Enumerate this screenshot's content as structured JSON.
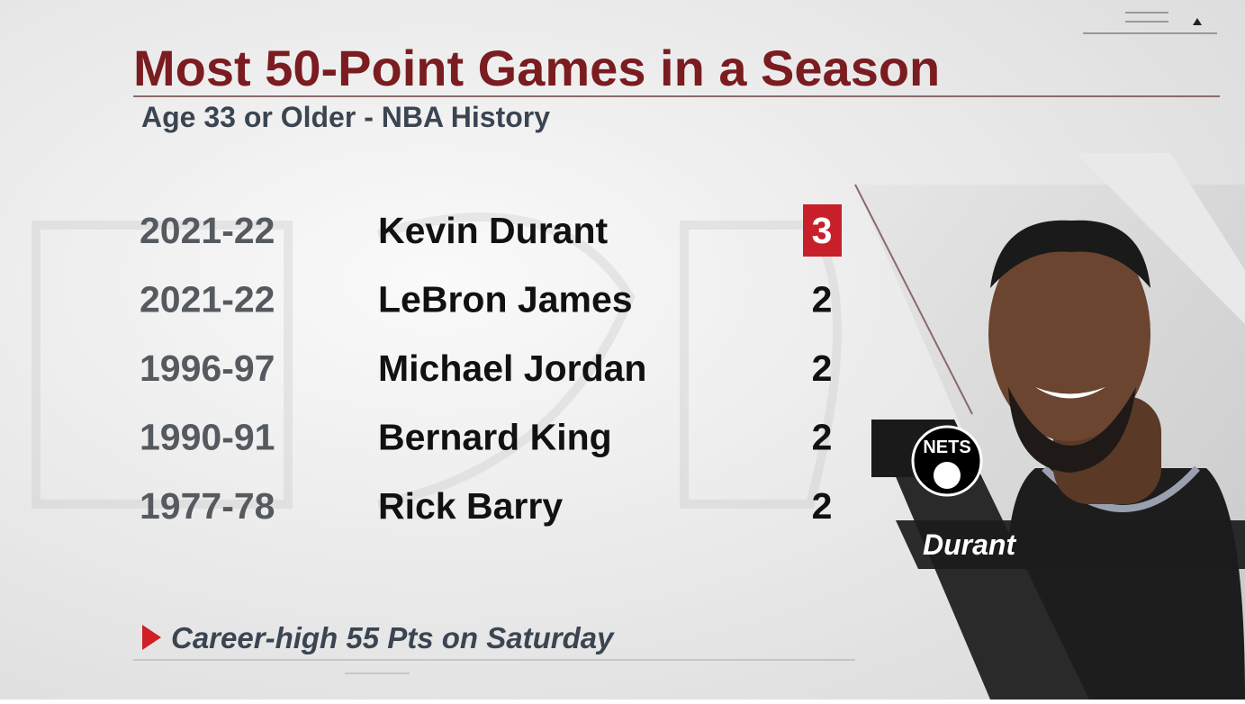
{
  "header": {
    "title": "Most 50-Point Games in a Season",
    "subtitle": "Age 33 or Older - NBA History"
  },
  "table": {
    "rows": [
      [
        "2021-22",
        "Kevin Durant",
        3
      ],
      [
        "2021-22",
        "LeBron James",
        2
      ],
      [
        "1996-97",
        "Michael Jordan",
        2
      ],
      [
        "1990-91",
        "Bernard King",
        2
      ],
      [
        "1977-78",
        "Rick Barry",
        2
      ]
    ]
  },
  "footnote": "Career-high 55 Pts on Saturday",
  "player_card": {
    "team": "NETS",
    "name": "Durant"
  }
}
